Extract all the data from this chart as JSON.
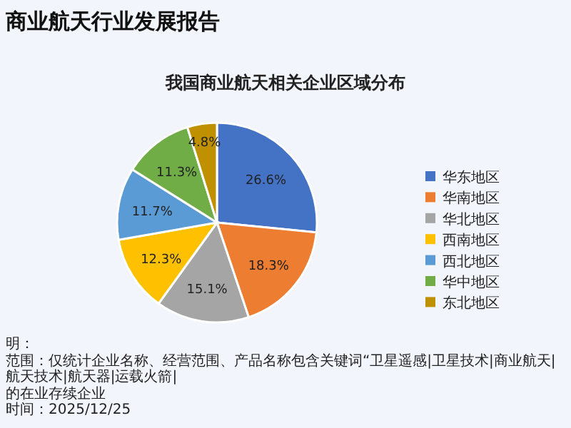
{
  "chart_data": {
    "type": "pie",
    "title": "商业航天行业发展报告",
    "subtitle": "我国商业航天相关企业区域分布",
    "categories": [
      "华东地区",
      "华南地区",
      "华北地区",
      "西南地区",
      "西北地区",
      "华中地区",
      "东北地区"
    ],
    "values": [
      26.6,
      18.3,
      15.1,
      12.3,
      11.7,
      11.3,
      4.8
    ],
    "colors": [
      "#4472c4",
      "#ed7d31",
      "#a5a5a5",
      "#ffc000",
      "#5b9bd5",
      "#70ad47",
      "#bf9000"
    ],
    "value_labels": [
      "26.6%",
      "18.3%",
      "15.1%",
      "12.3%",
      "11.7%",
      "11.3%",
      "4.8%"
    ],
    "legend": "right",
    "annotations": [
      "明：",
      "范围：仅统计企业名称、经营范围、产品名称包含关键词“卫星遥感|卫星技术|商业航天|航天技术|航天器|运载火箭|",
      "的在业存续企业",
      "时间：2025/12/25"
    ]
  }
}
